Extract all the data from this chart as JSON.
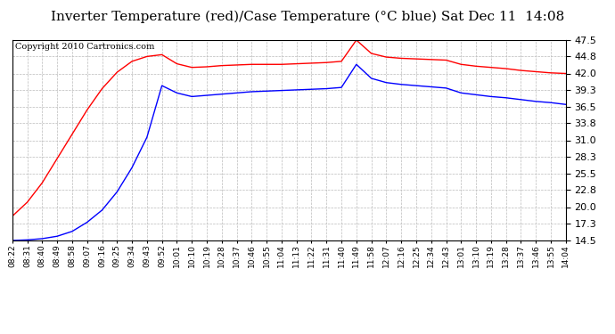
{
  "title": "Inverter Temperature (red)/Case Temperature (°C blue) Sat Dec 11  14:08",
  "copyright": "Copyright 2010 Cartronics.com",
  "yticks": [
    14.5,
    17.3,
    20.0,
    22.8,
    25.5,
    28.3,
    31.0,
    33.8,
    36.5,
    39.3,
    42.0,
    44.8,
    47.5
  ],
  "ylim": [
    14.5,
    47.5
  ],
  "xtick_labels": [
    "08:22",
    "08:31",
    "08:40",
    "08:49",
    "08:58",
    "09:07",
    "09:16",
    "09:25",
    "09:34",
    "09:43",
    "09:52",
    "10:01",
    "10:10",
    "10:19",
    "10:28",
    "10:37",
    "10:46",
    "10:55",
    "11:04",
    "11:13",
    "11:22",
    "11:31",
    "11:40",
    "11:49",
    "11:58",
    "12:07",
    "12:16",
    "12:25",
    "12:34",
    "12:43",
    "13:01",
    "13:10",
    "13:19",
    "13:28",
    "13:37",
    "13:46",
    "13:55",
    "14:04"
  ],
  "bg_color": "#ffffff",
  "grid_color": "#bbbbbb",
  "title_fontsize": 11,
  "copyright_fontsize": 7,
  "red_data": [
    18.5,
    20.8,
    24.0,
    28.0,
    32.0,
    36.0,
    39.5,
    42.2,
    44.0,
    44.8,
    45.1,
    43.6,
    43.0,
    43.1,
    43.3,
    43.4,
    43.5,
    43.5,
    43.5,
    43.6,
    43.7,
    43.8,
    44.0,
    47.5,
    45.3,
    44.7,
    44.5,
    44.4,
    44.3,
    44.2,
    43.5,
    43.2,
    43.0,
    42.8,
    42.5,
    42.3,
    42.1,
    42.0
  ],
  "blue_data": [
    14.5,
    14.6,
    14.8,
    15.2,
    16.0,
    17.5,
    19.5,
    22.5,
    26.5,
    31.5,
    40.0,
    38.8,
    38.2,
    38.4,
    38.6,
    38.8,
    39.0,
    39.1,
    39.2,
    39.3,
    39.4,
    39.5,
    39.7,
    43.5,
    41.2,
    40.5,
    40.2,
    40.0,
    39.8,
    39.6,
    38.8,
    38.5,
    38.2,
    38.0,
    37.7,
    37.4,
    37.2,
    36.9
  ],
  "figwidth": 6.9,
  "figheight": 3.75,
  "dpi": 100
}
